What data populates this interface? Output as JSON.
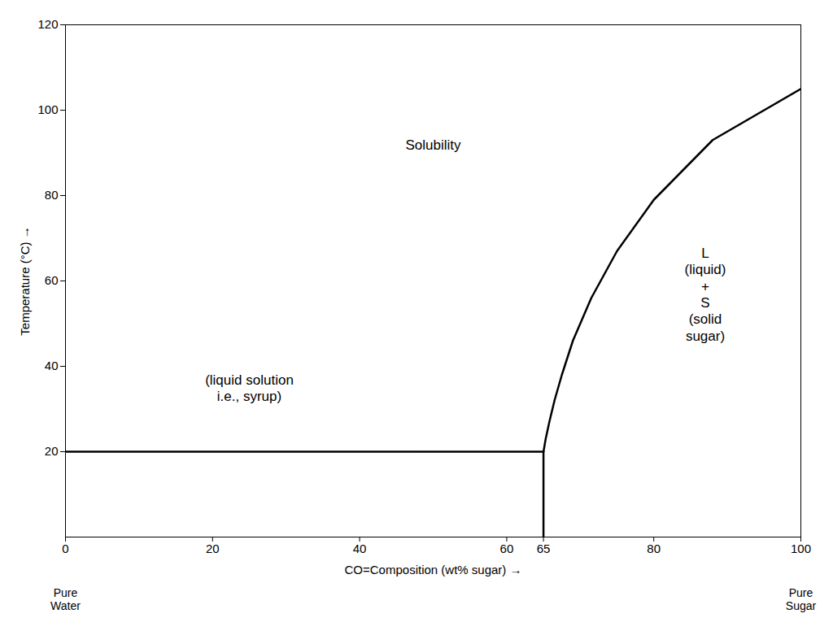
{
  "chart_data": {
    "type": "line",
    "xlabel": "CO=Composition (wt% sugar)",
    "ylabel": "Temperature (°C)",
    "xlim": [
      0,
      100
    ],
    "ylim": [
      0,
      120
    ],
    "xticks": [
      0,
      20,
      40,
      60,
      65,
      80,
      100
    ],
    "yticks": [
      20,
      40,
      60,
      80,
      100,
      120
    ],
    "grid": false,
    "series": [
      {
        "x": [
          65,
          65.3,
          65.8,
          66.5,
          67.5,
          69,
          71.5,
          75,
          80,
          88,
          100
        ],
        "values": [
          20,
          23,
          27,
          32,
          38,
          46,
          56,
          67,
          79,
          93,
          105
        ]
      },
      {
        "x": [
          0,
          65
        ],
        "values": [
          20,
          20
        ]
      },
      {
        "x": [
          65,
          65
        ],
        "values": [
          0,
          20
        ]
      }
    ],
    "annotations": [
      {
        "text": "Solubility",
        "x": 50,
        "y": 92
      },
      {
        "text": "(liquid solution\ni.e., syrup)",
        "x": 25,
        "y": 35
      },
      {
        "text": "L\n(liquid)\n+\nS\n(solid\nsugar)",
        "x": 87,
        "y": 57
      },
      {
        "text": "Pure\nWater",
        "x": 0
      },
      {
        "text": "Pure\nSugar",
        "x": 100
      }
    ]
  }
}
